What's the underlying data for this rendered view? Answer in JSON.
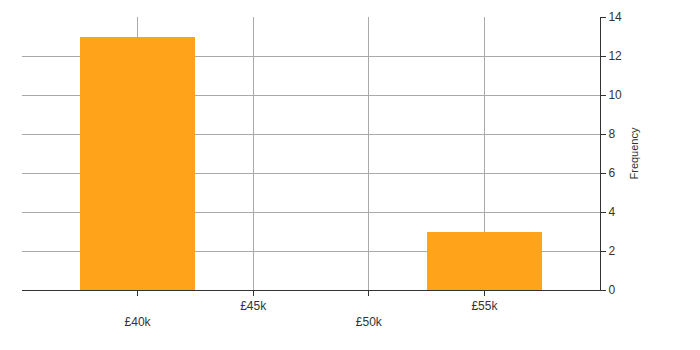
{
  "chart_data": {
    "type": "histogram",
    "bins": [
      37500,
      42500,
      47500,
      52500,
      57500
    ],
    "values": [
      13,
      0,
      0,
      3
    ],
    "color": "#ffa31a",
    "y_label": "Frequency",
    "xlim": [
      35000,
      60000
    ],
    "xticks": [
      {
        "value": 40000,
        "label": "£40k"
      },
      {
        "value": 45000,
        "label": "£45k"
      },
      {
        "value": 50000,
        "label": "£50k"
      },
      {
        "value": 55000,
        "label": "£55k"
      }
    ],
    "ylim": [
      0,
      14
    ],
    "yticks": [
      0,
      2,
      4,
      6,
      8,
      10,
      12,
      14
    ],
    "grid": true
  }
}
